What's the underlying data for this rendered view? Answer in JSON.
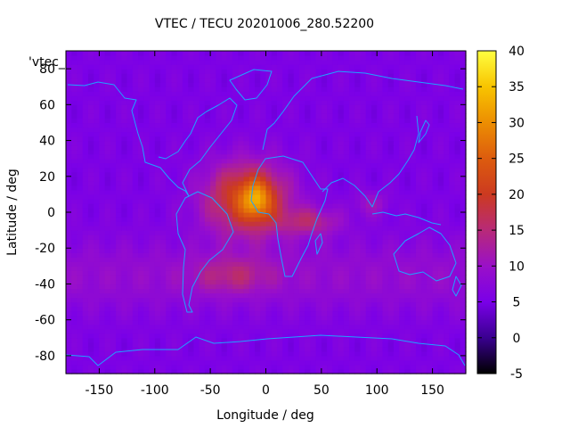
{
  "chart_data": {
    "type": "heatmap",
    "title": "VTEC / TECU 20201006_280.52200",
    "xlabel": "Longitude / deg",
    "ylabel": "Latitude / deg",
    "legend_label": "'vtec_",
    "xlim": [
      -180,
      180
    ],
    "ylim": [
      -90,
      90
    ],
    "xticks": [
      -150,
      -100,
      -50,
      0,
      50,
      100,
      150
    ],
    "yticks": [
      -80,
      -60,
      -40,
      -20,
      0,
      20,
      40,
      60,
      80
    ],
    "colorbar": {
      "range": [
        -5,
        40
      ],
      "ticks": [
        -5,
        0,
        5,
        10,
        15,
        20,
        25,
        30,
        35,
        40
      ],
      "palette": [
        "#000000",
        "#3a0090",
        "#7a00e8",
        "#9a10c8",
        "#b82a78",
        "#cc3a20",
        "#dd5c0e",
        "#ec8e02",
        "#f8c400",
        "#ffff40"
      ]
    },
    "grid": {
      "lon_step": 5,
      "lat_step": 2.5
    },
    "field_components": {
      "background": 5.5,
      "mid_latitude_boost": {
        "amplitude": 3.5,
        "center_lat": -35,
        "width_lat": 20
      },
      "anomalies": [
        {
          "lon": -17,
          "lat": 8,
          "sigma_lon": 38,
          "sigma_lat": 20,
          "amplitude": 17
        },
        {
          "lon": -8,
          "lat": 7,
          "sigma_lon": 14,
          "sigma_lat": 11,
          "amplitude": 12
        },
        {
          "lon": -30,
          "lat": -35,
          "sigma_lon": 35,
          "sigma_lat": 10,
          "amplitude": 6
        },
        {
          "lon": 40,
          "lat": -5,
          "sigma_lon": 28,
          "sigma_lat": 8,
          "amplitude": 8
        },
        {
          "lon": 95,
          "lat": 5,
          "sigma_lon": 15,
          "sigma_lat": 7,
          "amplitude": 5
        }
      ]
    }
  }
}
